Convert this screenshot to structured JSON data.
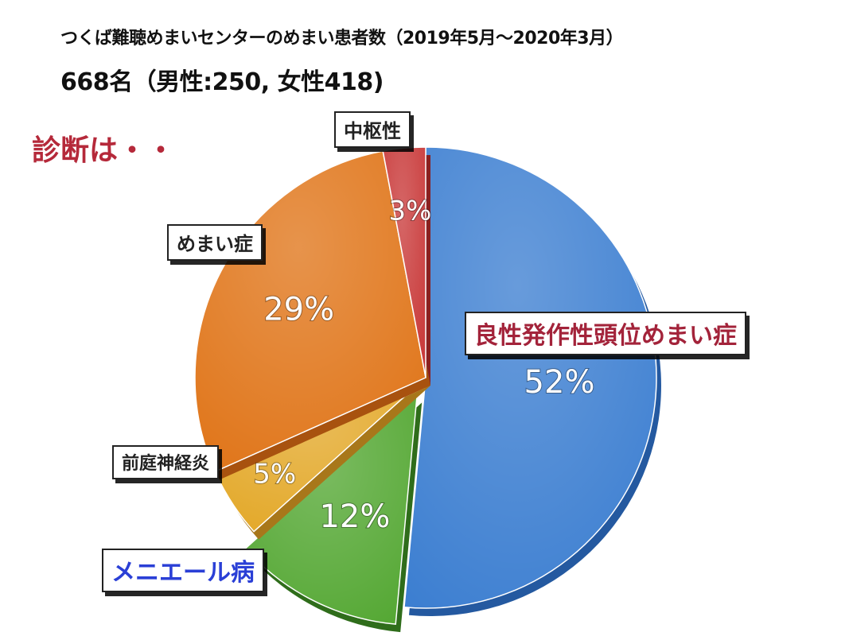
{
  "header": {
    "title": "つくば難聴めまいセンターのめまい患者数（2019年5月～2020年3月）",
    "subtitle": "668名（男性:250, 女性418)",
    "diagnosis_heading": "診断は・・"
  },
  "chart_data": {
    "type": "pie",
    "title": "つくば難聴めまいセンターのめまい患者数（2019年5月～2020年3月）",
    "subtitle": "668名（男性:250, 女性418)",
    "total": 668,
    "slices": [
      {
        "category": "良性発作性頭位めまい症",
        "value": 52,
        "label": "52%",
        "color": "#3d7fd1",
        "dark": "#2459a0",
        "exploded": false
      },
      {
        "category": "メニエール病",
        "value": 12,
        "label": "12%",
        "color": "#55a834",
        "dark": "#2f6d1b",
        "exploded": true
      },
      {
        "category": "前庭神経炎",
        "value": 5,
        "label": "5%",
        "color": "#e3a828",
        "dark": "#a8771a",
        "exploded": false
      },
      {
        "category": "めまい症",
        "value": 29,
        "label": "29%",
        "color": "#e07519",
        "dark": "#a8520f",
        "exploded": false
      },
      {
        "category": "中枢性",
        "value": 3,
        "label": "3%",
        "color": "#c93a3a",
        "dark": "#8a2020",
        "exploded": false
      }
    ]
  },
  "callouts": [
    {
      "text": "良性発作性頭位めまい症",
      "color": "#a3233a"
    },
    {
      "text": "メニエール病",
      "color": "#2a3fd6"
    },
    {
      "text": "前庭神経炎",
      "color": "#222222"
    },
    {
      "text": "めまい症",
      "color": "#222222"
    },
    {
      "text": "中枢性",
      "color": "#222222"
    }
  ]
}
